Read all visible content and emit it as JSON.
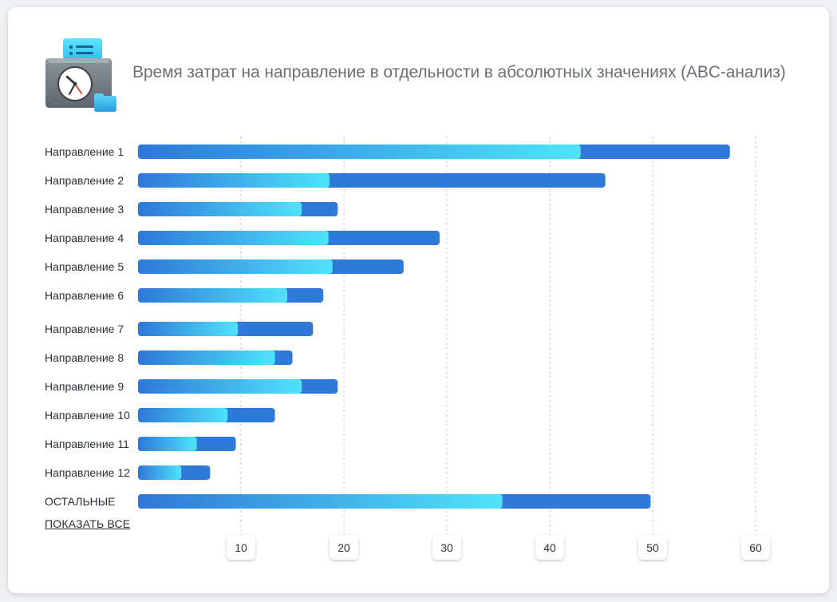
{
  "header": {
    "title": "Время затрат на направление в отдельности в абсолютных значениях (ABC-анализ)",
    "icon": "clock-folder-icon"
  },
  "actions": {
    "show_all_label": "ПОКАЗАТЬ ВСЕ"
  },
  "colors": {
    "bar_dark": "#2f7ad9",
    "bar_gradient_start": "#2e78d8",
    "bar_gradient_end": "#4fe3fb",
    "grid": "#c9ccd1"
  },
  "chart_data": {
    "type": "bar",
    "orientation": "horizontal",
    "title": "Время затрат на направление в отдельности в абсолютных значениях (ABC-анализ)",
    "categories": [
      "Направление 1",
      "Направление 2",
      "Направление 3",
      "Направление 4",
      "Направление 5",
      "Направление 6",
      "Направление 7",
      "Направление 8",
      "Направление 9",
      "Направление 10",
      "Направление 11",
      "Направление 12",
      "ОСТАЛЬНЫЕ"
    ],
    "series": [
      {
        "values": [
          57.5,
          45.4,
          19.4,
          29.3,
          25.8,
          18.0,
          17.0,
          15.0,
          19.4,
          13.3,
          9.5,
          7.0,
          49.8
        ]
      },
      {
        "values": [
          43.0,
          18.6,
          15.9,
          18.5,
          18.9,
          14.5,
          9.7,
          13.3,
          15.9,
          8.7,
          5.7,
          4.2,
          35.4
        ]
      }
    ],
    "xticks": [
      10,
      20,
      30,
      40,
      50,
      60
    ],
    "xlim": [
      0,
      60
    ],
    "grid": true,
    "xlabel": "",
    "ylabel": ""
  }
}
